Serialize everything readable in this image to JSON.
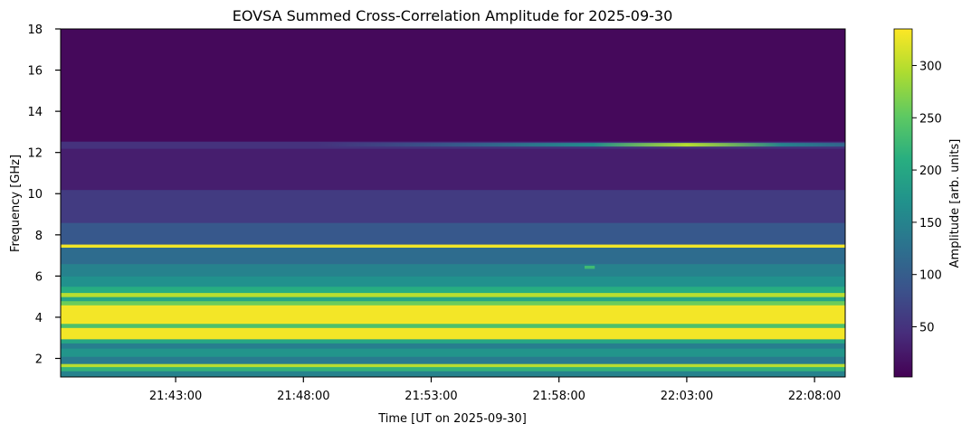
{
  "chart_data": {
    "type": "heatmap",
    "title": "EOVSA Summed Cross-Correlation Amplitude for 2025-09-30",
    "xlabel": "Time [UT on 2025-09-30]",
    "ylabel": "Frequency [GHz]",
    "colorbar_label": "Amplitude [arb. units]",
    "colormap": "viridis",
    "x_ticks": [
      "21:43:00",
      "21:48:00",
      "21:53:00",
      "21:58:00",
      "22:03:00",
      "22:08:00"
    ],
    "x_tick_values_min": [
      43,
      48,
      53,
      58,
      63,
      68
    ],
    "xlim_min": [
      38.5,
      69.2
    ],
    "y_ticks": [
      2,
      4,
      6,
      8,
      10,
      12,
      14,
      16,
      18
    ],
    "ylim": [
      1.1,
      18
    ],
    "colorbar_ticks": [
      50,
      100,
      150,
      200,
      250,
      300
    ],
    "colorbar_range": [
      2,
      335
    ],
    "bands": [
      {
        "f0": 1.1,
        "f1": 1.4,
        "value": 150
      },
      {
        "f0": 1.4,
        "f1": 1.6,
        "value": 220
      },
      {
        "f0": 1.6,
        "f1": 1.75,
        "value": 300
      },
      {
        "f0": 1.75,
        "f1": 2.1,
        "value": 140
      },
      {
        "f0": 2.1,
        "f1": 2.5,
        "value": 175
      },
      {
        "f0": 2.5,
        "f1": 2.75,
        "value": 145
      },
      {
        "f0": 2.75,
        "f1": 2.95,
        "value": 200
      },
      {
        "f0": 2.95,
        "f1": 3.5,
        "value": 330
      },
      {
        "f0": 3.5,
        "f1": 3.7,
        "value": 240
      },
      {
        "f0": 3.7,
        "f1": 4.6,
        "value": 330
      },
      {
        "f0": 4.6,
        "f1": 4.8,
        "value": 260
      },
      {
        "f0": 4.8,
        "f1": 5.0,
        "value": 200
      },
      {
        "f0": 5.0,
        "f1": 5.2,
        "value": 300
      },
      {
        "f0": 5.2,
        "f1": 5.5,
        "value": 210
      },
      {
        "f0": 5.5,
        "f1": 6.0,
        "value": 170
      },
      {
        "f0": 6.0,
        "f1": 6.6,
        "value": 150
      },
      {
        "f0": 6.6,
        "f1": 7.4,
        "value": 120
      },
      {
        "f0": 7.4,
        "f1": 7.55,
        "value": 330
      },
      {
        "f0": 7.55,
        "f1": 8.6,
        "value": 95
      },
      {
        "f0": 8.6,
        "f1": 10.2,
        "value": 60
      },
      {
        "f0": 10.2,
        "f1": 12.2,
        "value": 30
      },
      {
        "f0": 12.2,
        "f1": 12.55,
        "value": 50
      },
      {
        "f0": 12.55,
        "f1": 18.0,
        "value": 10
      }
    ],
    "features": [
      {
        "kind": "band_brightening",
        "f0": 12.2,
        "f1": 12.55,
        "t0": 48.5,
        "t1": 69.2,
        "peak_t": 63.0,
        "peak_value": 300
      },
      {
        "kind": "patch",
        "f0": 6.35,
        "f1": 6.5,
        "t0": 59.0,
        "t1": 59.4,
        "value": 230
      }
    ]
  }
}
